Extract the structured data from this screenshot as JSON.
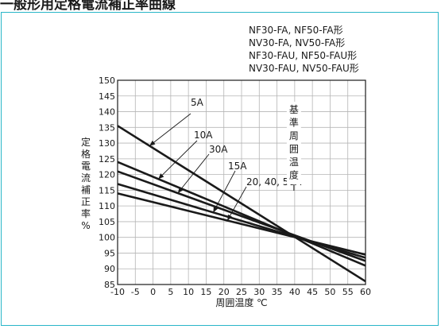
{
  "header": {
    "cut_title": "一般形用定格電流補正率曲線"
  },
  "chart_data": {
    "type": "line",
    "model_lines": [
      "NF30-FA, NF50-FA形",
      "NV30-FA, NV50-FA形",
      "NF30-FAU, NF50-FAU形",
      "NV30-FAU, NV50-FAU形"
    ],
    "xlabel": "周囲温度 ℃",
    "ylabel": "定格電流補正率 %",
    "ylabel_chars": [
      "定",
      "格",
      "電",
      "流",
      "補",
      "正",
      "率",
      "%"
    ],
    "reference_label": "基準周囲温度",
    "reference_chars": [
      "基",
      "準",
      "周",
      "囲",
      "温",
      "度"
    ],
    "reference_x": 40,
    "xlim": [
      -10,
      60
    ],
    "ylim": [
      85,
      150
    ],
    "x_ticks": [
      -10,
      -5,
      0,
      5,
      10,
      15,
      20,
      25,
      30,
      35,
      40,
      45,
      50,
      55,
      60
    ],
    "y_ticks": [
      85,
      90,
      95,
      100,
      105,
      110,
      115,
      120,
      125,
      130,
      135,
      140,
      145,
      150
    ],
    "grid": true,
    "series": [
      {
        "name": "5A",
        "x": [
          -10,
          60
        ],
        "y": [
          135.5,
          86
        ]
      },
      {
        "name": "10A",
        "x": [
          -10,
          60
        ],
        "y": [
          124,
          91
        ]
      },
      {
        "name": "30A",
        "x": [
          -10,
          60
        ],
        "y": [
          121,
          92.5
        ]
      },
      {
        "name": "15A",
        "x": [
          -10,
          60
        ],
        "y": [
          117,
          93.5
        ]
      },
      {
        "name": "20, 40, 50A",
        "x": [
          -10,
          60
        ],
        "y": [
          114,
          94.5
        ]
      }
    ],
    "labels": [
      "5A",
      "10A",
      "30A",
      "15A",
      "20, 40, 50A"
    ]
  }
}
